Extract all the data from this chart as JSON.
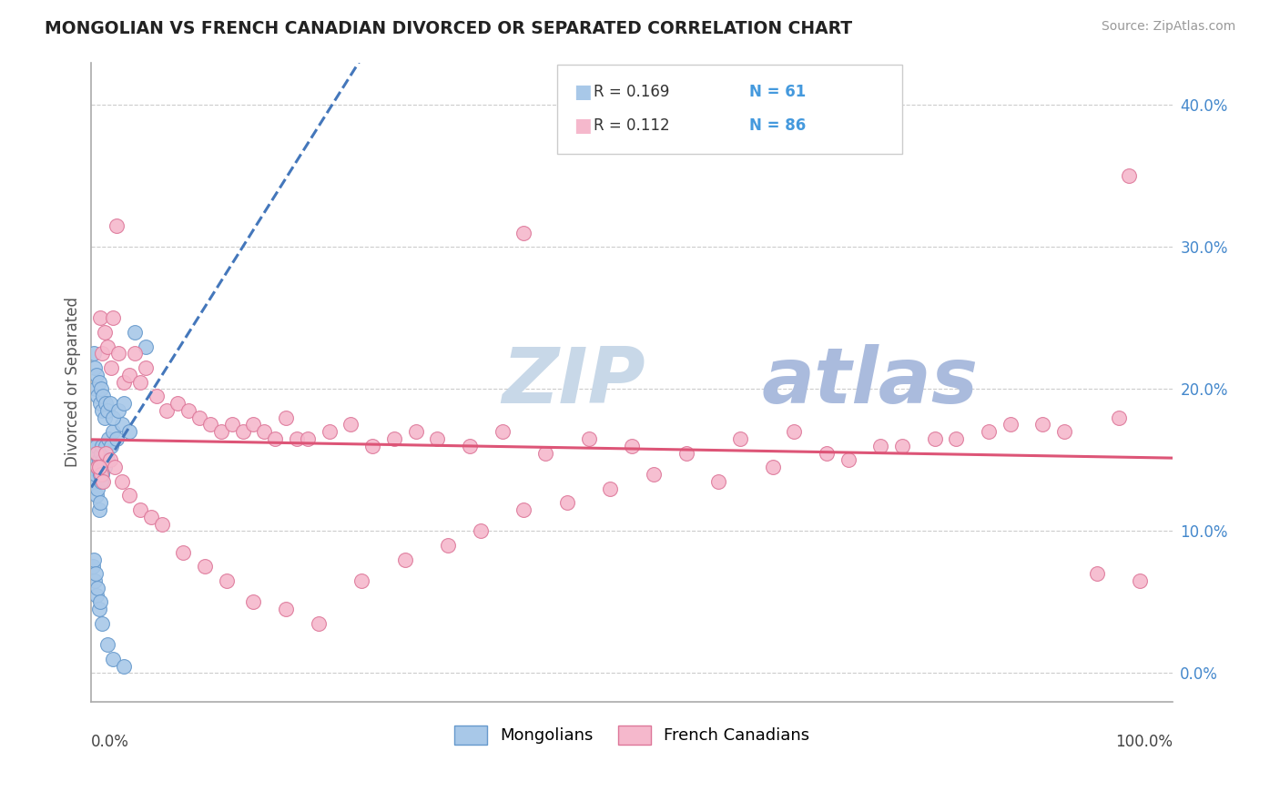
{
  "title": "MONGOLIAN VS FRENCH CANADIAN DIVORCED OR SEPARATED CORRELATION CHART",
  "source_text": "Source: ZipAtlas.com",
  "ylabel": "Divorced or Separated",
  "legend_r_blue": "R = 0.169",
  "legend_n_blue": "N = 61",
  "legend_r_pink": "R = 0.112",
  "legend_n_pink": "N = 86",
  "legend_label_blue": "Mongolians",
  "legend_label_pink": "French Canadians",
  "ytick_labels": [
    "0.0%",
    "10.0%",
    "20.0%",
    "30.0%",
    "40.0%"
  ],
  "ytick_values": [
    0,
    10,
    20,
    30,
    40
  ],
  "xlim": [
    0,
    100
  ],
  "ylim": [
    -2,
    43
  ],
  "color_blue": "#a8c8e8",
  "color_blue_edge": "#6699cc",
  "color_blue_line": "#4477bb",
  "color_pink": "#f5b8cc",
  "color_pink_edge": "#dd7799",
  "color_pink_line": "#dd5577",
  "watermark_color": "#ddeeff",
  "background_color": "#ffffff",
  "grid_color": "#cccccc",
  "title_color": "#222222",
  "blue_x": [
    0.1,
    0.2,
    0.2,
    0.3,
    0.3,
    0.4,
    0.4,
    0.5,
    0.5,
    0.6,
    0.6,
    0.7,
    0.7,
    0.8,
    0.8,
    0.9,
    0.9,
    1.0,
    1.0,
    1.1,
    1.2,
    1.3,
    1.4,
    1.5,
    1.6,
    1.8,
    2.0,
    2.3,
    2.8,
    3.5,
    0.2,
    0.3,
    0.4,
    0.5,
    0.6,
    0.7,
    0.8,
    0.9,
    1.0,
    1.1,
    1.2,
    1.3,
    1.5,
    1.7,
    2.0,
    2.5,
    3.0,
    0.1,
    0.2,
    0.3,
    0.4,
    0.5,
    0.6,
    0.7,
    0.8,
    1.0,
    1.5,
    2.0,
    3.0,
    4.0,
    5.0
  ],
  "blue_y": [
    15.5,
    14.5,
    16.0,
    13.5,
    15.0,
    14.0,
    15.5,
    12.5,
    16.0,
    13.0,
    14.5,
    11.5,
    15.0,
    12.0,
    14.0,
    13.5,
    15.5,
    14.0,
    16.0,
    15.0,
    14.5,
    16.0,
    15.5,
    15.0,
    16.5,
    16.0,
    17.0,
    16.5,
    17.5,
    17.0,
    22.5,
    21.5,
    20.0,
    21.0,
    19.5,
    20.5,
    19.0,
    20.0,
    18.5,
    19.5,
    18.0,
    19.0,
    18.5,
    19.0,
    18.0,
    18.5,
    19.0,
    7.5,
    8.0,
    6.5,
    7.0,
    5.5,
    6.0,
    4.5,
    5.0,
    3.5,
    2.0,
    1.0,
    0.5,
    24.0,
    23.0
  ],
  "pink_x": [
    0.5,
    0.8,
    1.0,
    1.2,
    1.5,
    1.8,
    2.0,
    2.5,
    3.0,
    3.5,
    4.0,
    4.5,
    5.0,
    6.0,
    7.0,
    8.0,
    9.0,
    10.0,
    11.0,
    12.0,
    13.0,
    14.0,
    15.0,
    16.0,
    17.0,
    18.0,
    19.0,
    20.0,
    22.0,
    24.0,
    26.0,
    28.0,
    30.0,
    32.0,
    35.0,
    38.0,
    42.0,
    46.0,
    50.0,
    55.0,
    60.0,
    65.0,
    70.0,
    75.0,
    80.0,
    85.0,
    90.0,
    95.0,
    0.6,
    0.9,
    1.3,
    1.7,
    2.2,
    2.8,
    3.5,
    4.5,
    5.5,
    6.5,
    8.5,
    10.5,
    12.5,
    15.0,
    18.0,
    21.0,
    25.0,
    29.0,
    33.0,
    36.0,
    40.0,
    44.0,
    48.0,
    52.0,
    58.0,
    63.0,
    68.0,
    73.0,
    78.0,
    83.0,
    88.0,
    93.0,
    97.0,
    0.7,
    1.1,
    96.0,
    2.3,
    40.0
  ],
  "pink_y": [
    15.5,
    25.0,
    22.5,
    24.0,
    23.0,
    21.5,
    25.0,
    22.5,
    20.5,
    21.0,
    22.5,
    20.5,
    21.5,
    19.5,
    18.5,
    19.0,
    18.5,
    18.0,
    17.5,
    17.0,
    17.5,
    17.0,
    17.5,
    17.0,
    16.5,
    18.0,
    16.5,
    16.5,
    17.0,
    17.5,
    16.0,
    16.5,
    17.0,
    16.5,
    16.0,
    17.0,
    15.5,
    16.5,
    16.0,
    15.5,
    16.5,
    17.0,
    15.0,
    16.0,
    16.5,
    17.5,
    17.0,
    18.0,
    14.5,
    14.0,
    15.5,
    15.0,
    14.5,
    13.5,
    12.5,
    11.5,
    11.0,
    10.5,
    8.5,
    7.5,
    6.5,
    5.0,
    4.5,
    3.5,
    6.5,
    8.0,
    9.0,
    10.0,
    11.5,
    12.0,
    13.0,
    14.0,
    13.5,
    14.5,
    15.5,
    16.0,
    16.5,
    17.0,
    17.5,
    7.0,
    6.5,
    14.5,
    13.5,
    35.0,
    31.5,
    31.0
  ]
}
